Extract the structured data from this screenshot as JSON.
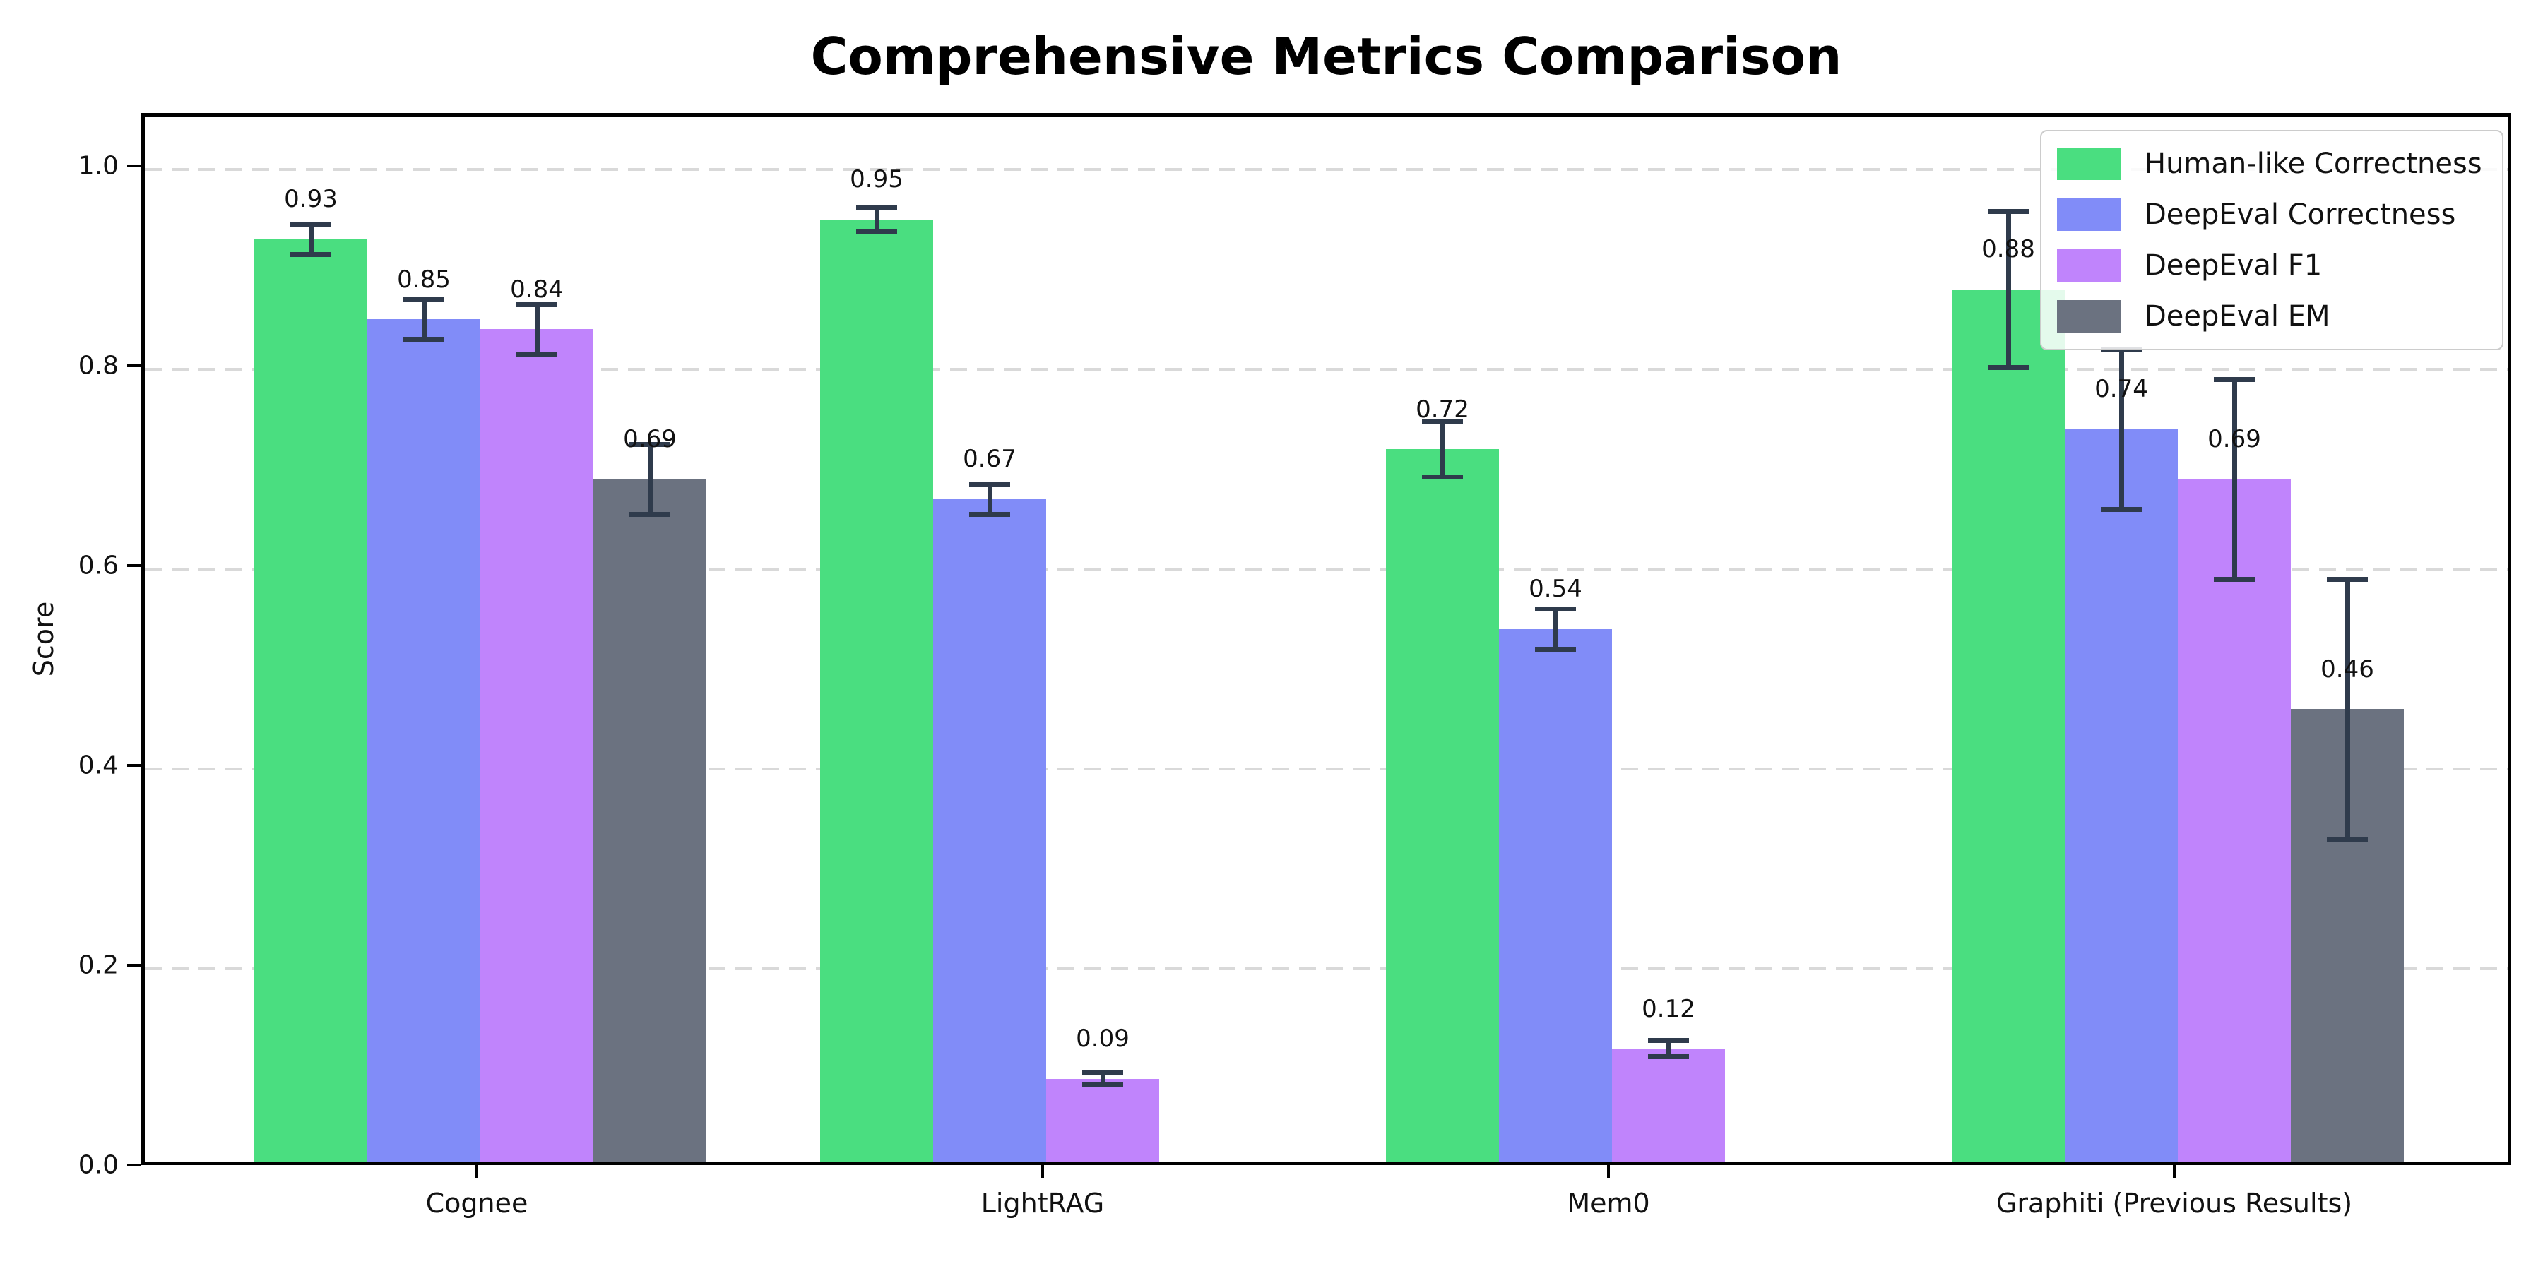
{
  "chart_data": {
    "type": "bar",
    "title": "Comprehensive Metrics Comparison",
    "xlabel": "",
    "ylabel": "Score",
    "categories": [
      "Cognee",
      "LightRAG",
      "Mem0",
      "Graphiti (Previous Results)"
    ],
    "series": [
      {
        "name": "Human-like Correctness",
        "color": "#4ade80",
        "values": [
          0.93,
          0.95,
          0.72,
          0.88
        ],
        "errors": [
          0.015,
          0.012,
          0.028,
          0.078
        ]
      },
      {
        "name": "DeepEval Correctness",
        "color": "#818cf8",
        "values": [
          0.85,
          0.67,
          0.54,
          0.74
        ],
        "errors": [
          0.02,
          0.015,
          0.02,
          0.08
        ]
      },
      {
        "name": "DeepEval F1",
        "color": "#c084fc",
        "values": [
          0.84,
          0.09,
          0.12,
          0.69
        ],
        "errors": [
          0.025,
          0.006,
          0.008,
          0.1
        ]
      },
      {
        "name": "DeepEval EM",
        "color": "#6b7280",
        "values": [
          0.69,
          0.0,
          0.0,
          0.46
        ],
        "errors": [
          0.035,
          0.004,
          0.003,
          0.13
        ]
      }
    ],
    "bar_labels": [
      [
        "0.93",
        "0.95",
        "0.72",
        "0.88"
      ],
      [
        "0.85",
        "0.67",
        "0.54",
        "0.74"
      ],
      [
        "0.84",
        "0.09",
        "0.12",
        "0.69"
      ],
      [
        "0.69",
        "",
        "",
        "0.46"
      ]
    ],
    "yticks": [
      "0.0",
      "0.2",
      "0.4",
      "0.6",
      "0.8",
      "1.0"
    ],
    "ytick_values": [
      0.0,
      0.2,
      0.4,
      0.6,
      0.8,
      1.0
    ],
    "ylim": [
      0,
      1.053
    ],
    "grid": "horizontal-dashed",
    "legend_position": "upper right",
    "error_bar_color": "#2f3b4c"
  }
}
